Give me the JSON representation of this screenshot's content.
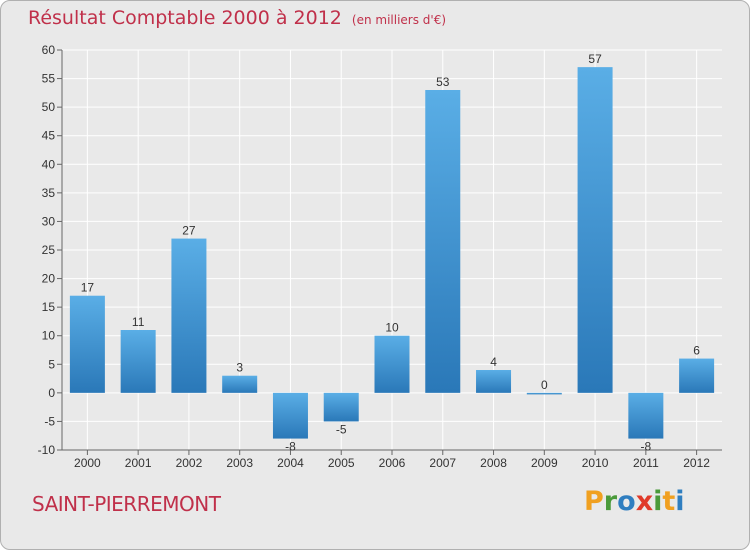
{
  "chart_data": {
    "type": "bar",
    "title": "Résultat Comptable 2000 à 2012",
    "subtitle": "(en milliers d'€)",
    "categories": [
      "2000",
      "2001",
      "2002",
      "2003",
      "2004",
      "2005",
      "2006",
      "2007",
      "2008",
      "2009",
      "2010",
      "2011",
      "2012"
    ],
    "values": [
      17,
      11,
      27,
      3,
      -8,
      -5,
      10,
      53,
      4,
      0,
      57,
      -8,
      6
    ],
    "data_labels": [
      "17",
      "11",
      "27",
      "3",
      "-8",
      "-5",
      "10",
      "53",
      "4",
      "0",
      "57",
      "-8",
      "6"
    ],
    "ylim": [
      -10,
      60
    ],
    "yticks": [
      "-10",
      "-5",
      "0",
      "5",
      "10",
      "15",
      "20",
      "25",
      "30",
      "35",
      "40",
      "45",
      "50",
      "55",
      "60"
    ],
    "grid": true,
    "xlabel": "",
    "ylabel": ""
  },
  "commune": "SAINT-PIERREMONT",
  "logo": {
    "letters": [
      "P",
      "r",
      "o",
      "x",
      "i",
      "t",
      "i"
    ],
    "colors": [
      "#f0a020",
      "#4a9a3a",
      "#2f7ec0",
      "#e03a2a",
      "#4a9a3a",
      "#f0a020",
      "#2f7ec0"
    ]
  },
  "colors": {
    "bar_top": "#5aaee6",
    "bar_bottom": "#2a78b8",
    "title": "#c0304a",
    "grid": "#ffffff"
  }
}
